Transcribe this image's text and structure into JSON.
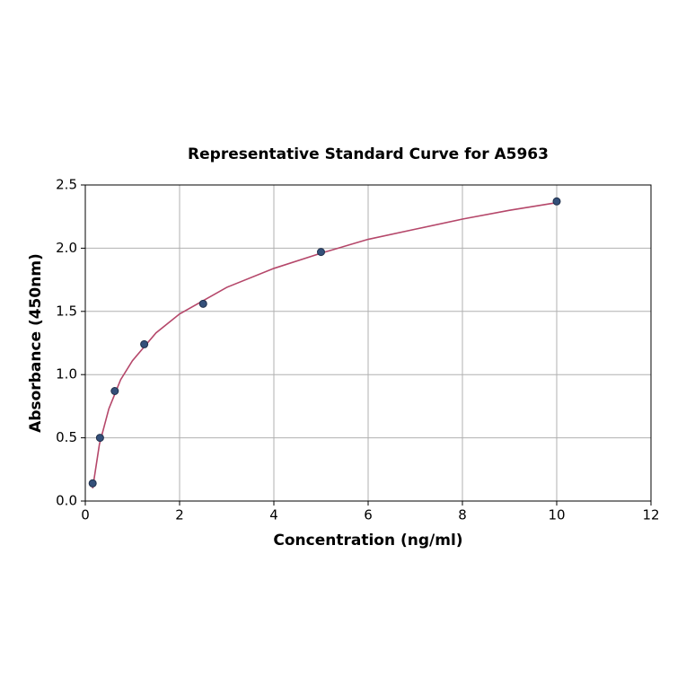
{
  "chart_data": {
    "type": "scatter",
    "title": "Representative Standard Curve for A5963",
    "xlabel": "Concentration (ng/ml)",
    "ylabel": "Absorbance (450nm)",
    "series": [
      {
        "kind": "marker",
        "color": "#34507a",
        "x": [
          0.156,
          0.312,
          0.625,
          1.25,
          2.5,
          5,
          10
        ],
        "values": [
          0.14,
          0.5,
          0.87,
          1.24,
          1.56,
          1.97,
          2.37
        ]
      },
      {
        "kind": "line",
        "color": "#b5476a",
        "x": [
          0.156,
          0.3,
          0.5,
          0.75,
          1,
          1.5,
          2,
          3,
          4,
          5,
          6,
          7,
          8,
          9,
          10
        ],
        "values": [
          0.1,
          0.45,
          0.73,
          0.96,
          1.11,
          1.33,
          1.48,
          1.69,
          1.84,
          1.96,
          2.07,
          2.15,
          2.23,
          2.3,
          2.36
        ]
      }
    ],
    "xlim": [
      0,
      12
    ],
    "ylim": [
      0,
      2.5
    ],
    "xticks": [
      0,
      2,
      4,
      6,
      8,
      10,
      12
    ],
    "yticks": [
      {
        "value": 0,
        "label": "0.0"
      },
      0.5,
      {
        "value": 1,
        "label": "1.0"
      },
      1.5,
      {
        "value": 2,
        "label": "2.0"
      },
      2.5
    ],
    "grid": true
  }
}
